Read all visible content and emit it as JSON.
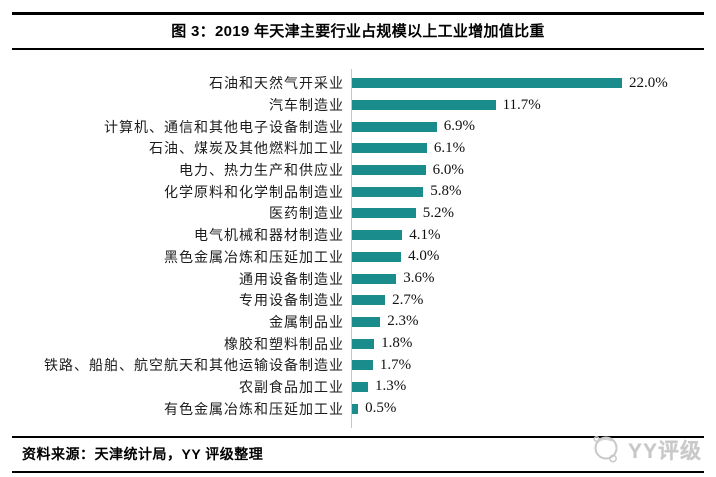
{
  "title": "图 3：2019 年天津主要行业占规模以上工业增加值比重",
  "chart_data": {
    "type": "bar",
    "orientation": "horizontal",
    "title": "图 3：2019 年天津主要行业占规模以上工业增加值比重",
    "categories": [
      "石油和天然气开采业",
      "汽车制造业",
      "计算机、通信和其他电子设备制造业",
      "石油、煤炭及其他燃料加工业",
      "电力、热力生产和供应业",
      "化学原料和化学制品制造业",
      "医药制造业",
      "电气机械和器材制造业",
      "黑色金属冶炼和压延加工业",
      "通用设备制造业",
      "专用设备制造业",
      "金属制品业",
      "橡胶和塑料制品业",
      "铁路、船舶、航空航天和其他运输设备制造业",
      "农副食品加工业",
      "有色金属冶炼和压延加工业"
    ],
    "values": [
      22.0,
      11.7,
      6.9,
      6.1,
      6.0,
      5.8,
      5.2,
      4.1,
      4.0,
      3.6,
      2.7,
      2.3,
      1.8,
      1.7,
      1.3,
      0.5
    ],
    "value_labels": [
      "22.0%",
      "11.7%",
      "6.9%",
      "6.1%",
      "6.0%",
      "5.8%",
      "5.2%",
      "4.1%",
      "4.0%",
      "3.6%",
      "2.7%",
      "2.3%",
      "1.8%",
      "1.7%",
      "1.3%",
      "0.5%"
    ],
    "unit": "%",
    "xlim": [
      0,
      24
    ],
    "grid": false,
    "legend": false,
    "bar_color": "#1b8c8c",
    "axis_color": "#c5c8ca",
    "data_labels": true
  },
  "footer": {
    "source": "资料来源：天津统计局，YY 评级整理",
    "watermark": "YY评级"
  },
  "colors": {
    "bar": "#1b8c8c",
    "rule": "#000000",
    "watermark": "#c8c8c8"
  }
}
